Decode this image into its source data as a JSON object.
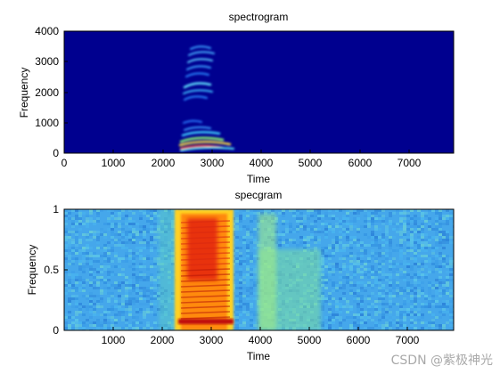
{
  "chart_data": [
    {
      "type": "heatmap",
      "title": "spectrogram",
      "xlabel": "Time",
      "ylabel": "Frequency",
      "xlim": [
        0,
        7900
      ],
      "ylim": [
        0,
        4000
      ],
      "xticks": [
        0,
        1000,
        2000,
        3000,
        4000,
        5000,
        6000,
        7000
      ],
      "yticks": [
        0,
        1000,
        2000,
        3000,
        4000
      ],
      "colormap": "jet",
      "background_level": 0.0,
      "grid": false
    },
    {
      "type": "heatmap",
      "title": "specgram",
      "xlabel": "Time",
      "ylabel": "Frequency",
      "xlim": [
        0,
        7950
      ],
      "ylim": [
        0,
        1
      ],
      "xticks": [
        1000,
        2000,
        3000,
        4000,
        5000,
        6000,
        7000
      ],
      "yticks": [
        0,
        0.5,
        1
      ],
      "colormap": "jet",
      "background_level": 0.35,
      "grid": false
    }
  ],
  "colors": {
    "jet_dark_blue": "#00008f",
    "jet_cyan": "#00ffff",
    "jet_yellow": "#ffff00",
    "jet_red": "#ff0000"
  },
  "watermark": "CSDN @紫极神光"
}
